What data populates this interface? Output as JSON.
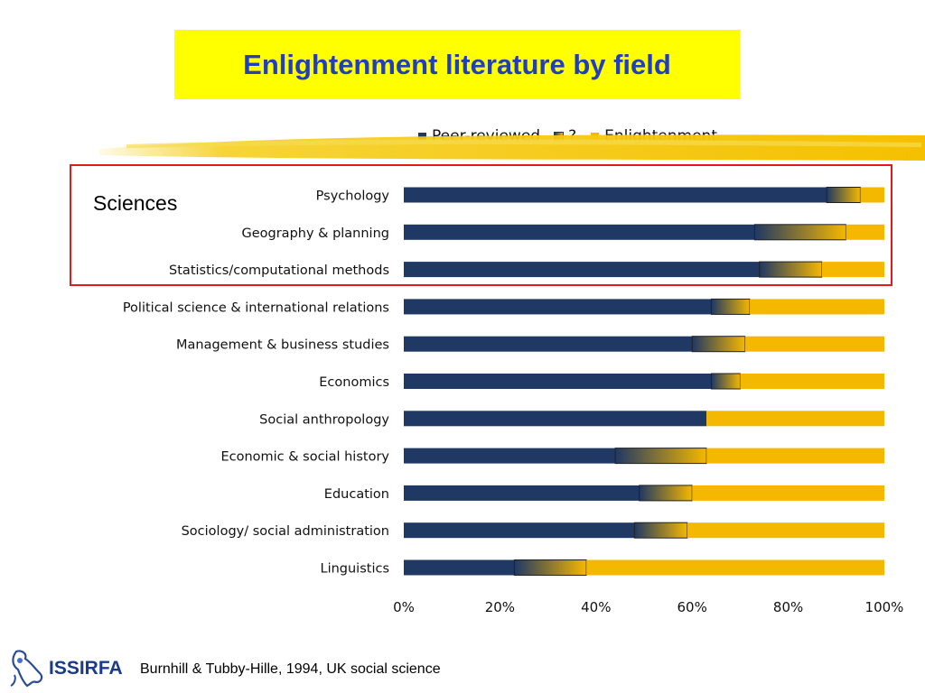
{
  "slide": {
    "title": "Enlightenment literature by field",
    "sciences_label": "Sciences",
    "citation": "Burnhill & Tubby-Hille, 1994, UK social science",
    "logo_text": "ISSIRFA"
  },
  "colors": {
    "title_bg": "#ffff00",
    "title_text": "#1f3fbf",
    "peer_reviewed": "#1f3864",
    "enlightenment": "#f5b800",
    "highlight_border": "#e01b1b"
  },
  "chart_data": {
    "type": "bar",
    "orientation": "horizontal",
    "stacked": true,
    "percent": true,
    "legend": [
      "Peer-reviewed",
      "?",
      "Enlightenment"
    ],
    "legend_position": "top",
    "categories": [
      "Psychology",
      "Geography & planning",
      "Statistics/computational methods",
      "Political science & international relations",
      "Management & business studies",
      "Economics",
      "Social anthropology",
      "Economic & social history",
      "Education",
      "Sociology/ social administration",
      "Linguistics"
    ],
    "series": [
      {
        "name": "Peer-reviewed",
        "values": [
          88,
          73,
          74,
          64,
          60,
          64,
          63,
          44,
          49,
          48,
          23
        ]
      },
      {
        "name": "?",
        "values": [
          7,
          19,
          13,
          8,
          11,
          6,
          0,
          19,
          11,
          11,
          15
        ]
      },
      {
        "name": "Enlightenment",
        "values": [
          5,
          8,
          13,
          28,
          29,
          30,
          37,
          37,
          40,
          41,
          62
        ]
      }
    ],
    "x_ticks": [
      "0%",
      "20%",
      "40%",
      "60%",
      "80%",
      "100%"
    ],
    "xlim": [
      0,
      100
    ],
    "grid": false
  }
}
